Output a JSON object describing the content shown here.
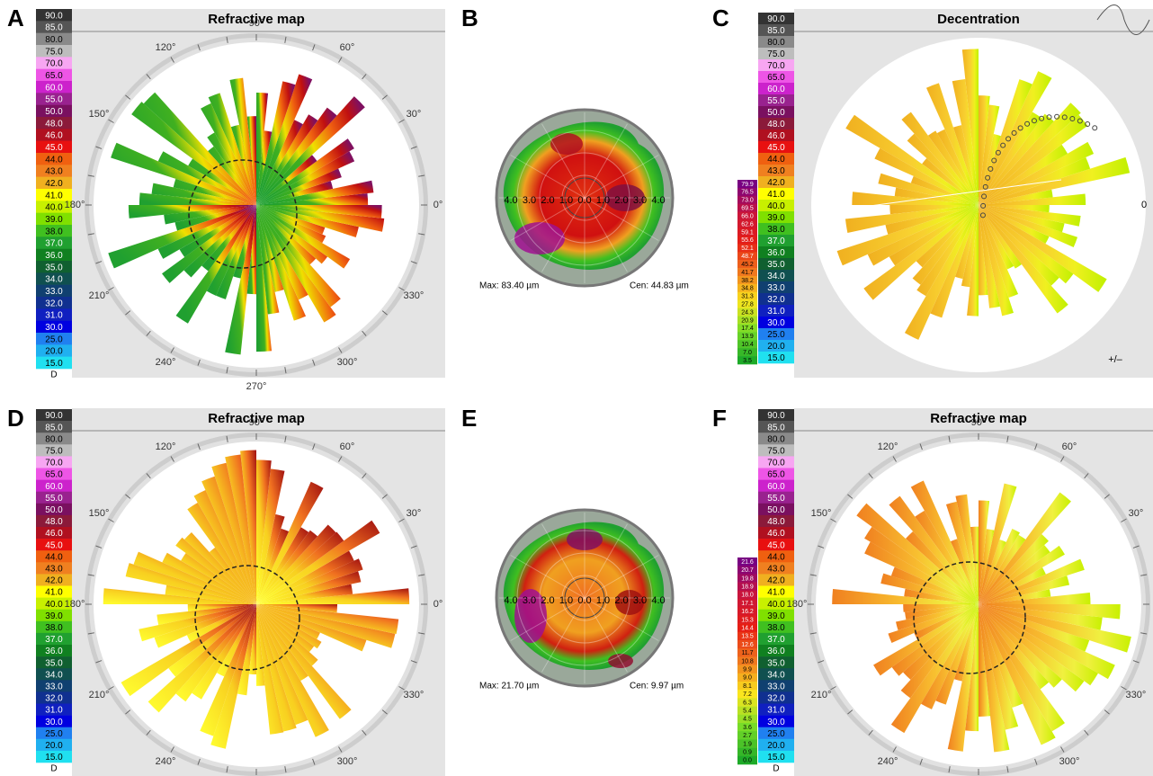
{
  "panel_labels": [
    "A",
    "B",
    "C",
    "D",
    "E",
    "F"
  ],
  "refractive_scale": {
    "values": [
      "90.0",
      "85.0",
      "80.0",
      "75.0",
      "70.0",
      "65.0",
      "60.0",
      "55.0",
      "50.0",
      "48.0",
      "46.0",
      "45.0",
      "44.0",
      "43.0",
      "42.0",
      "41.0",
      "40.0",
      "39.0",
      "38.0",
      "37.0",
      "36.0",
      "35.0",
      "34.0",
      "33.0",
      "32.0",
      "31.0",
      "30.0",
      "25.0",
      "20.0",
      "15.0"
    ],
    "colors": [
      "#333333",
      "#555555",
      "#8a8a8a",
      "#bdbdbd",
      "#f7a6f2",
      "#ee55e6",
      "#cc22cc",
      "#99228f",
      "#7a1060",
      "#8b1a3a",
      "#b01020",
      "#e81010",
      "#f06010",
      "#f08020",
      "#f0b020",
      "#ffff00",
      "#c8f000",
      "#80e000",
      "#40c020",
      "#20a030",
      "#108020",
      "#106030",
      "#105050",
      "#104070",
      "#103090",
      "#1020c0",
      "#0000e0",
      "#2080f0",
      "#20b0f0",
      "#20e0f0"
    ],
    "unit": "D"
  },
  "angle_labels": [
    "0°",
    "30°",
    "60°",
    "90°",
    "120°",
    "150°",
    "180°",
    "210°",
    "240°",
    "270°",
    "300°",
    "330°"
  ],
  "panels": {
    "A": {
      "title": "Refractive map"
    },
    "B": {
      "axis_labels": [
        "4.0",
        "3.0",
        "2.0",
        "1.0",
        "0.0",
        "1.0",
        "2.0",
        "3.0",
        "4.0"
      ],
      "max": "Max: 83.40 µm",
      "cen": "Cen: 44.83 µm",
      "scale": [
        "79.9",
        "76.5",
        "73.0",
        "69.5",
        "66.0",
        "62.6",
        "59.1",
        "55.6",
        "52.1",
        "48.7",
        "45.2",
        "41.7",
        "38.2",
        "34.8",
        "31.3",
        "27.8",
        "24.3",
        "20.9",
        "17.4",
        "13.9",
        "10.4",
        "7.0",
        "3.5"
      ]
    },
    "C": {
      "title": "Decentration",
      "sign": "+/–",
      "zero": "0"
    },
    "D": {
      "title": "Refractive map"
    },
    "E": {
      "axis_labels": [
        "4.0",
        "3.0",
        "2.0",
        "1.0",
        "0.0",
        "1.0",
        "2.0",
        "3.0",
        "4.0"
      ],
      "max": "Max: 21.70 µm",
      "cen": "Cen: 9.97 µm",
      "scale": [
        "21.6",
        "20.7",
        "19.8",
        "18.9",
        "18.0",
        "17.1",
        "16.2",
        "15.3",
        "14.4",
        "13.5",
        "12.6",
        "11.7",
        "10.8",
        "9.9",
        "9.0",
        "8.1",
        "7.2",
        "6.3",
        "5.4",
        "4.5",
        "3.6",
        "2.7",
        "1.9",
        "0.9",
        "0.0"
      ]
    },
    "F": {
      "title": "Refractive map"
    }
  }
}
